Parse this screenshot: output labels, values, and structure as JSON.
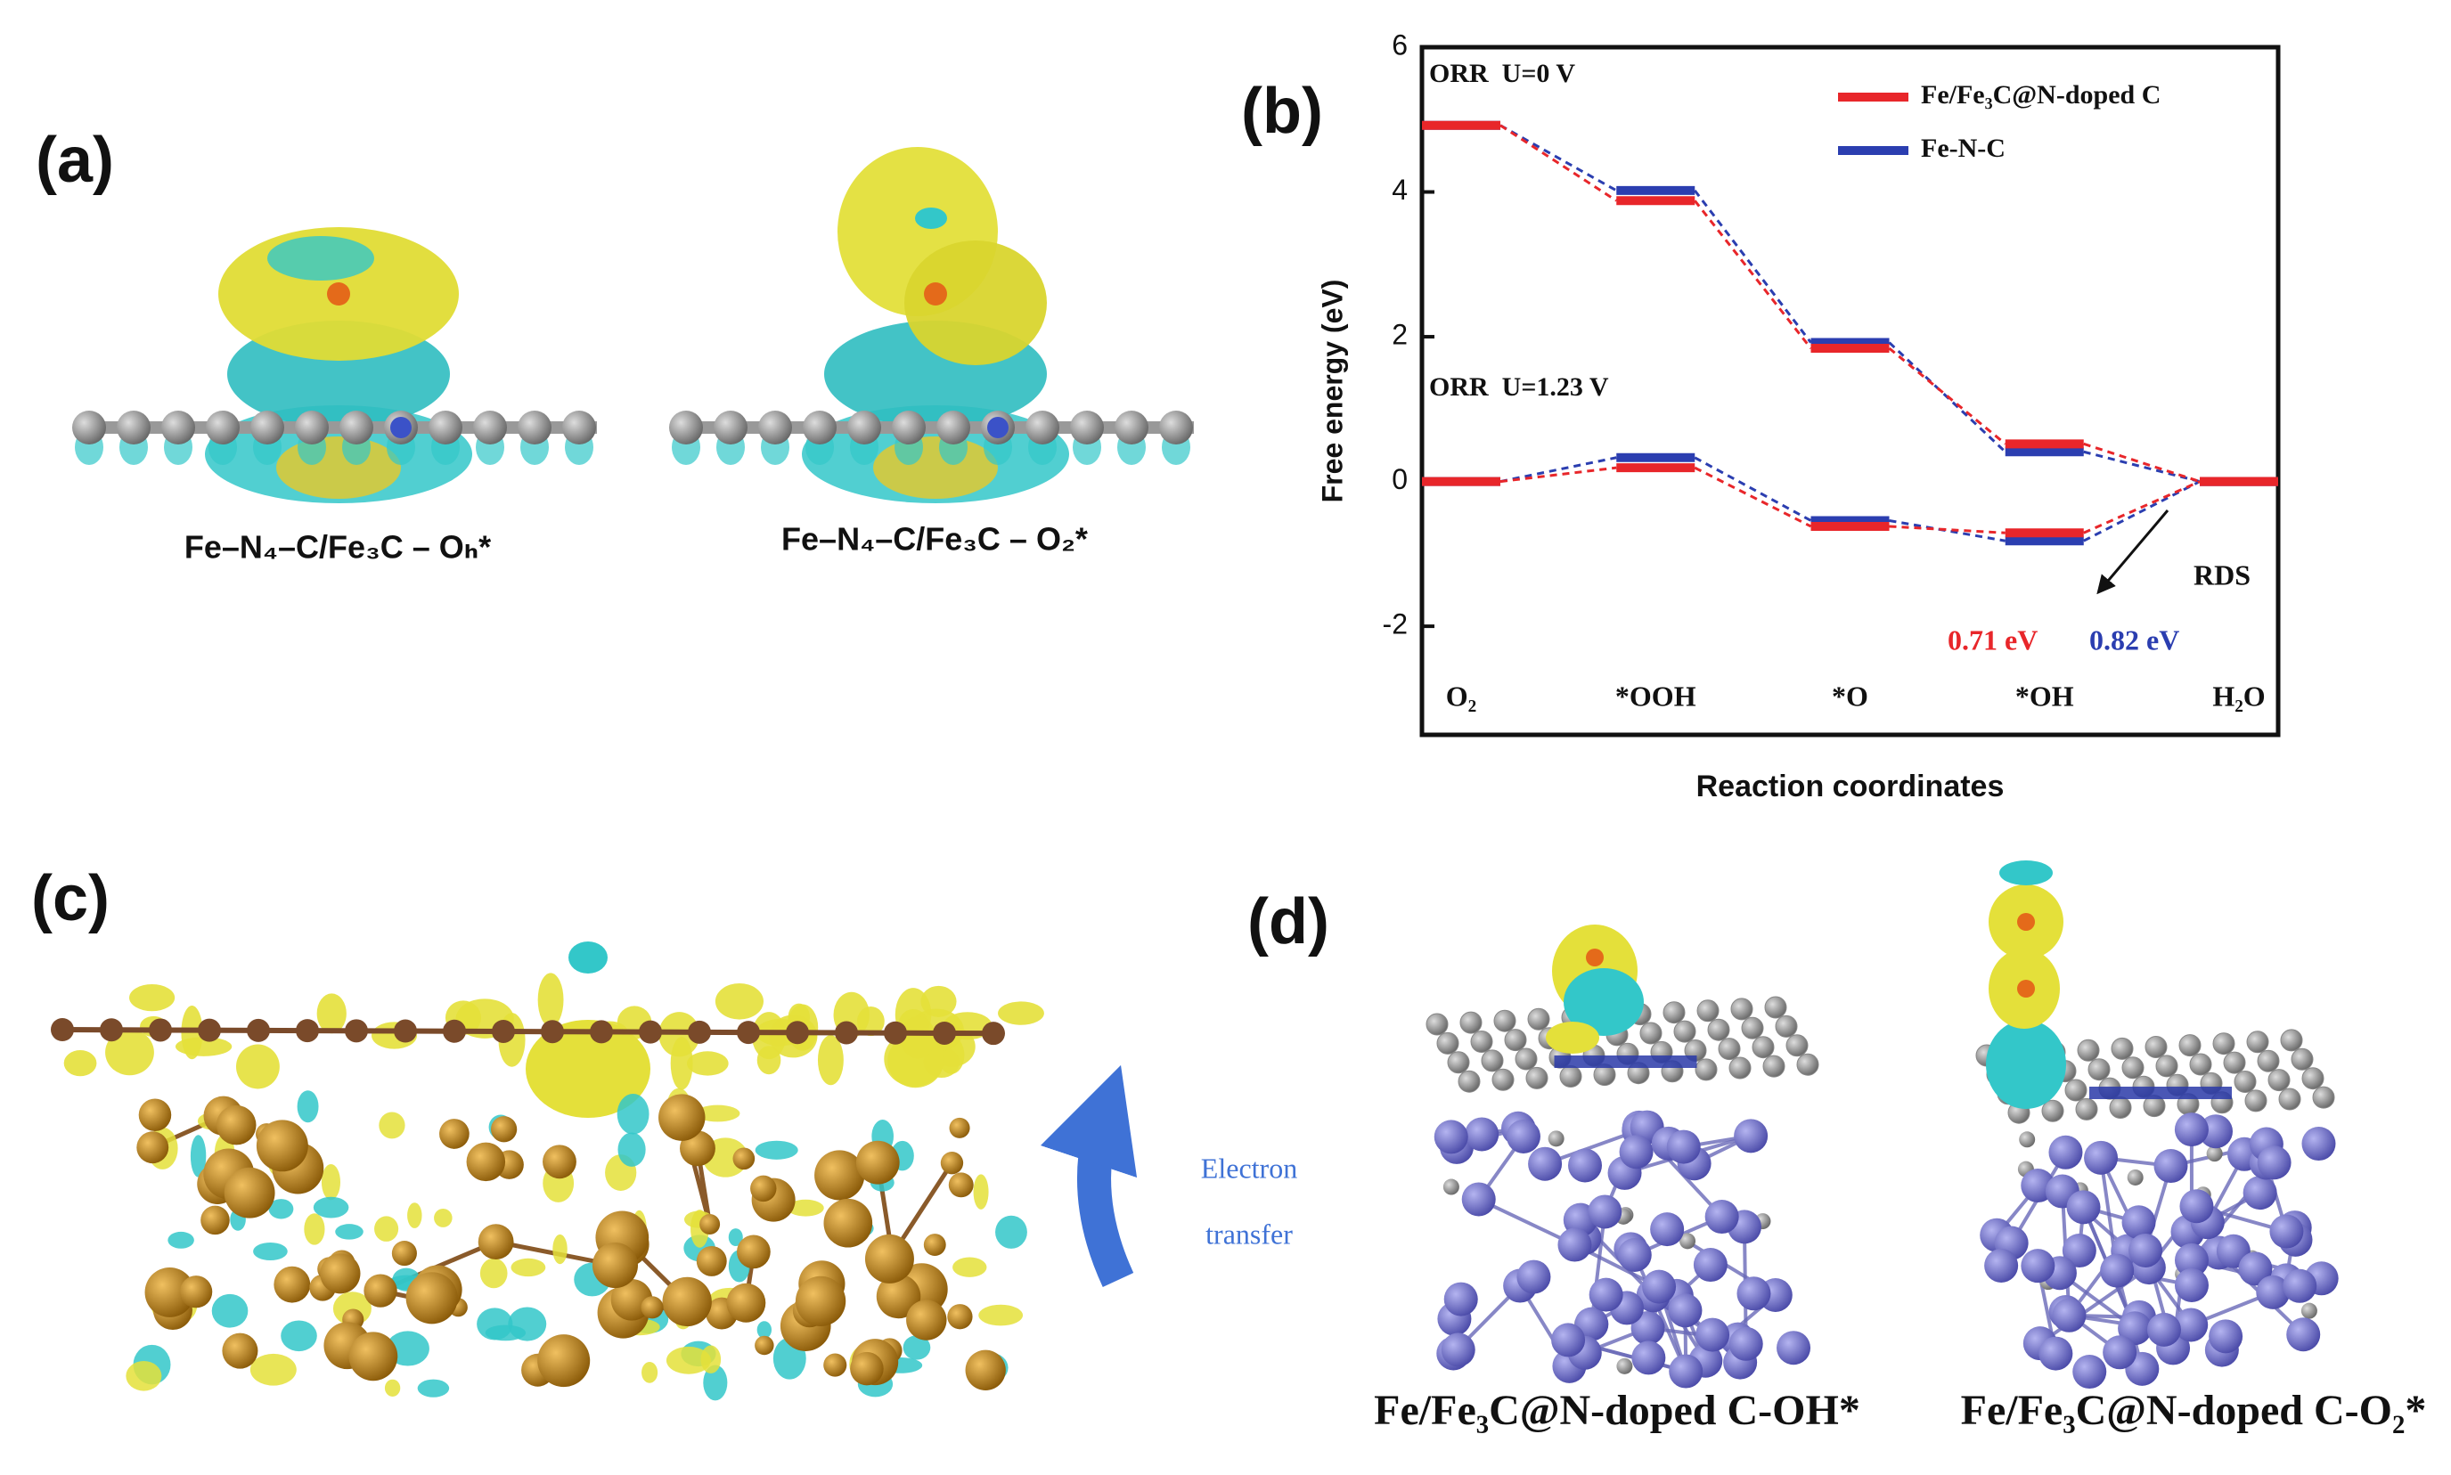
{
  "panel_labels": [
    "(a)",
    "(b)",
    "(c)",
    "(d)"
  ],
  "panel_a": {
    "captions": [
      "Fe–N₄–C/Fe₃C – Oₕ*",
      "Fe–N₄–C/Fe₃C – O₂*"
    ]
  },
  "chart_data": {
    "type": "energy-levels",
    "ylabel": "Free energy (eV)",
    "xlabel": "Reaction coordinates",
    "categories": [
      "O₂",
      "*OOH",
      "*O",
      "*OH",
      "H₂O"
    ],
    "conditions": [
      "ORR  U=0 V",
      "ORR  U=1.23 V"
    ],
    "series": [
      {
        "name": "Fe/Fe₃C@N-doped C",
        "color": "#e8262a",
        "values": [
          [
            4.92,
            3.88,
            1.84,
            0.52,
            0
          ],
          [
            0,
            0.19,
            -0.62,
            -0.71,
            0
          ]
        ],
        "rds_label": "0.71 eV"
      },
      {
        "name": "Fe-N-C",
        "color": "#2b3eb0",
        "values": [
          [
            4.92,
            4.02,
            1.92,
            0.41,
            0
          ],
          [
            0,
            0.33,
            -0.54,
            -0.82,
            0
          ]
        ],
        "rds_label": "0.82 eV"
      }
    ],
    "annotation": "RDS",
    "ylim": [
      -3.5,
      6
    ],
    "yticks": [
      -2,
      0,
      2,
      4,
      6
    ]
  },
  "panel_c": {
    "annotation": [
      "Electron",
      "transfer"
    ]
  },
  "panel_d": {
    "captions": [
      "Fe/Fe₃C@N-doped C-OH*",
      "Fe/Fe₃C@N-doped C-O₂*"
    ]
  }
}
